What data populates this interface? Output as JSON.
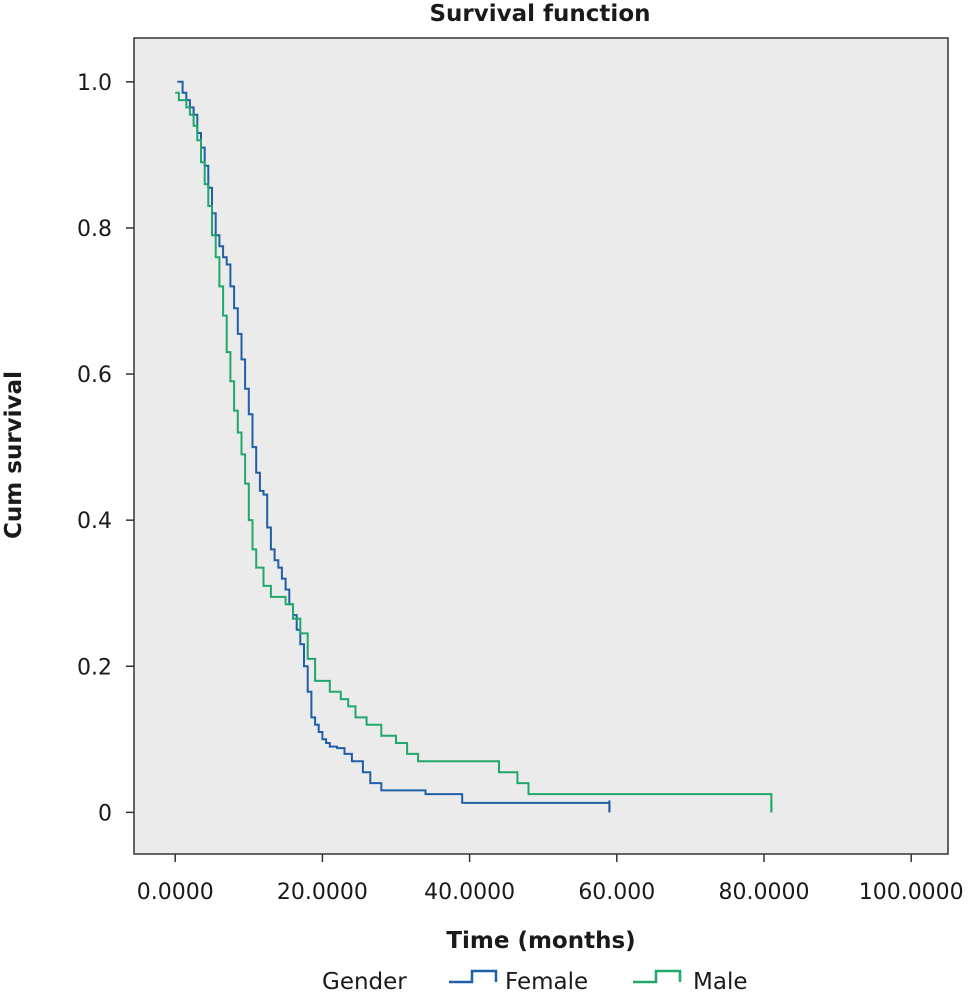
{
  "chart_data": {
    "type": "line",
    "step": true,
    "title": "Survival function",
    "xlabel": "Time (months)",
    "ylabel": "Cum survival",
    "xlim": [
      -5.6,
      105.0
    ],
    "ylim": [
      -0.057,
      1.06
    ],
    "x_ticks": [
      0,
      20,
      40,
      60,
      80,
      100
    ],
    "x_tick_labels": [
      "0.0000",
      "20.0000",
      "40.0000",
      "60.000",
      "80.0000",
      "100.0000"
    ],
    "y_ticks": [
      0,
      0.2,
      0.4,
      0.6,
      0.8,
      1.0
    ],
    "y_tick_labels": [
      "0",
      "0.2",
      "0.4",
      "0.6",
      "0.8",
      "1.0"
    ],
    "grid": false,
    "plot_background": "#ebebeb",
    "legend": {
      "title": "Gender",
      "placement": "bottom"
    },
    "series": [
      {
        "name": "Female",
        "color": "#1f5fa8",
        "x": [
          0.3,
          1.0,
          1.5,
          2.0,
          2.5,
          3.0,
          3.5,
          4.0,
          4.5,
          5.0,
          5.5,
          6.0,
          6.5,
          7.0,
          7.5,
          8.0,
          8.5,
          9.0,
          9.5,
          10.0,
          10.5,
          11.0,
          11.5,
          12.0,
          12.5,
          13.0,
          13.5,
          14.0,
          14.5,
          15.0,
          15.5,
          16.0,
          16.5,
          17.0,
          17.5,
          18.0,
          18.5,
          19.0,
          19.5,
          20.0,
          20.5,
          21.0,
          22.0,
          23.0,
          24.0,
          25.5,
          26.5,
          28.0,
          30.0,
          34.0,
          39.0,
          59.0
        ],
        "y": [
          1.0,
          0.985,
          0.975,
          0.965,
          0.955,
          0.93,
          0.91,
          0.885,
          0.855,
          0.82,
          0.79,
          0.775,
          0.76,
          0.75,
          0.72,
          0.69,
          0.655,
          0.62,
          0.58,
          0.545,
          0.5,
          0.465,
          0.44,
          0.435,
          0.39,
          0.36,
          0.345,
          0.335,
          0.32,
          0.305,
          0.285,
          0.27,
          0.25,
          0.23,
          0.2,
          0.165,
          0.13,
          0.12,
          0.11,
          0.1,
          0.095,
          0.09,
          0.088,
          0.08,
          0.07,
          0.055,
          0.04,
          0.03,
          0.03,
          0.025,
          0.013,
          0.0
        ],
        "censor_end": true
      },
      {
        "name": "Male",
        "color": "#1fa86a",
        "x": [
          0.0,
          0.5,
          1.5,
          2.0,
          2.5,
          3.0,
          3.5,
          4.0,
          4.5,
          5.0,
          5.5,
          6.0,
          6.5,
          7.0,
          7.5,
          8.0,
          8.5,
          9.0,
          9.5,
          10.0,
          10.5,
          11.0,
          12.0,
          13.0,
          14.0,
          15.0,
          16.0,
          17.0,
          18.0,
          19.0,
          21.0,
          22.5,
          23.5,
          24.5,
          26.0,
          28.0,
          30.0,
          31.5,
          33.0,
          44.0,
          46.5,
          48.0,
          81.0
        ],
        "y": [
          0.985,
          0.975,
          0.965,
          0.955,
          0.94,
          0.92,
          0.89,
          0.86,
          0.83,
          0.79,
          0.76,
          0.72,
          0.68,
          0.63,
          0.59,
          0.55,
          0.52,
          0.49,
          0.45,
          0.4,
          0.36,
          0.335,
          0.31,
          0.295,
          0.295,
          0.285,
          0.265,
          0.245,
          0.21,
          0.18,
          0.165,
          0.155,
          0.145,
          0.13,
          0.12,
          0.105,
          0.095,
          0.08,
          0.07,
          0.055,
          0.04,
          0.025,
          0.0
        ],
        "censor_end": true
      }
    ]
  }
}
